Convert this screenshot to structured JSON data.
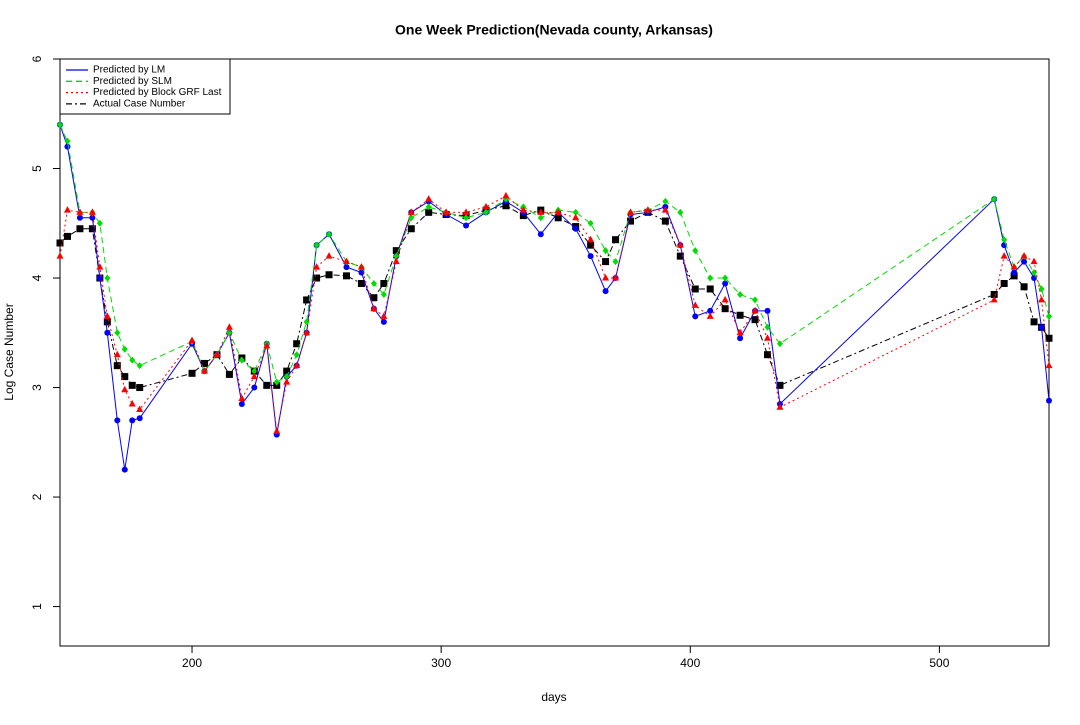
{
  "chart_data": {
    "type": "line",
    "title": "One Week Prediction(Nevada county, Arkansas)",
    "x_label": "days",
    "y_label": "Log Case Number",
    "xlim": [
      147,
      544
    ],
    "ylim": [
      0.64,
      6
    ],
    "xticks": [
      200,
      300,
      400,
      500
    ],
    "yticks": [
      1,
      2,
      3,
      4,
      5,
      6
    ],
    "legend": "top-left",
    "x": [
      147,
      150,
      155,
      160,
      163,
      166,
      170,
      173,
      176,
      179,
      200,
      205,
      210,
      215,
      220,
      225,
      230,
      234,
      238,
      242,
      246,
      250,
      255,
      262,
      268,
      273,
      277,
      282,
      288,
      295,
      302,
      310,
      318,
      326,
      333,
      340,
      347,
      354,
      360,
      366,
      370,
      376,
      383,
      390,
      396,
      402,
      408,
      414,
      420,
      426,
      431,
      436,
      522,
      526,
      530,
      534,
      538,
      541,
      544
    ],
    "series": [
      {
        "name": "Predicted by LM",
        "color": "#0000ff",
        "line_style": "solid",
        "marker": "circle",
        "values": [
          5.4,
          5.2,
          4.55,
          4.55,
          4.0,
          3.5,
          2.7,
          2.25,
          2.7,
          2.72,
          3.4,
          3.15,
          3.3,
          3.5,
          2.85,
          3.0,
          3.4,
          2.57,
          3.1,
          3.2,
          3.5,
          4.3,
          4.4,
          4.1,
          4.05,
          3.72,
          3.6,
          4.2,
          4.6,
          4.7,
          4.58,
          4.48,
          4.6,
          4.7,
          4.6,
          4.4,
          4.6,
          4.45,
          4.2,
          3.88,
          4.0,
          4.58,
          4.6,
          4.65,
          4.3,
          3.65,
          3.7,
          3.95,
          3.45,
          3.7,
          3.7,
          2.85,
          4.72,
          4.3,
          4.05,
          4.15,
          4.0,
          3.55,
          2.88
        ]
      },
      {
        "name": "Predicted by SLM",
        "color": "#00dd00",
        "line_style": "dashed",
        "marker": "diamond",
        "values": [
          5.4,
          5.25,
          4.6,
          4.6,
          4.5,
          4.0,
          3.5,
          3.35,
          3.25,
          3.2,
          3.42,
          3.15,
          3.3,
          3.5,
          3.25,
          3.15,
          3.4,
          3.05,
          3.1,
          3.3,
          3.6,
          4.3,
          4.4,
          4.15,
          4.1,
          3.95,
          3.85,
          4.2,
          4.55,
          4.65,
          4.6,
          4.55,
          4.6,
          4.72,
          4.65,
          4.55,
          4.62,
          4.6,
          4.5,
          4.25,
          4.15,
          4.6,
          4.62,
          4.7,
          4.6,
          4.25,
          4.0,
          4.0,
          3.85,
          3.8,
          3.55,
          3.4,
          4.72,
          4.35,
          4.1,
          4.2,
          4.05,
          3.9,
          3.65
        ]
      },
      {
        "name": "Predicted by Block GRF Last",
        "color": "#ff0000",
        "line_style": "dotted",
        "marker": "triangle",
        "values": [
          4.2,
          4.62,
          4.6,
          4.6,
          4.1,
          3.65,
          3.3,
          2.98,
          2.85,
          2.8,
          3.43,
          3.15,
          3.3,
          3.55,
          2.9,
          3.1,
          3.38,
          2.6,
          3.05,
          3.2,
          3.5,
          4.1,
          4.2,
          4.15,
          4.1,
          3.72,
          3.65,
          4.15,
          4.6,
          4.72,
          4.6,
          4.6,
          4.65,
          4.75,
          4.62,
          4.6,
          4.6,
          4.55,
          4.35,
          4.0,
          4.0,
          4.6,
          4.62,
          4.62,
          4.3,
          3.75,
          3.65,
          3.8,
          3.5,
          3.7,
          3.45,
          2.82,
          3.8,
          4.2,
          4.1,
          4.2,
          4.15,
          3.8,
          3.2
        ]
      },
      {
        "name": "Actual Case Number",
        "color": "#000000",
        "line_style": "dashdot",
        "marker": "square",
        "values": [
          4.32,
          4.38,
          4.45,
          4.45,
          4.0,
          3.6,
          3.2,
          3.1,
          3.02,
          3.0,
          3.13,
          3.22,
          3.3,
          3.12,
          3.27,
          3.15,
          3.02,
          3.02,
          3.15,
          3.4,
          3.8,
          4.0,
          4.03,
          4.02,
          3.95,
          3.82,
          3.95,
          4.25,
          4.45,
          4.6,
          4.58,
          4.57,
          4.62,
          4.66,
          4.57,
          4.62,
          4.55,
          4.47,
          4.3,
          4.15,
          4.35,
          4.52,
          4.6,
          4.52,
          4.2,
          3.9,
          3.9,
          3.72,
          3.66,
          3.62,
          3.3,
          3.02,
          3.85,
          3.95,
          4.02,
          3.92,
          3.6,
          3.55,
          3.45
        ]
      }
    ]
  }
}
